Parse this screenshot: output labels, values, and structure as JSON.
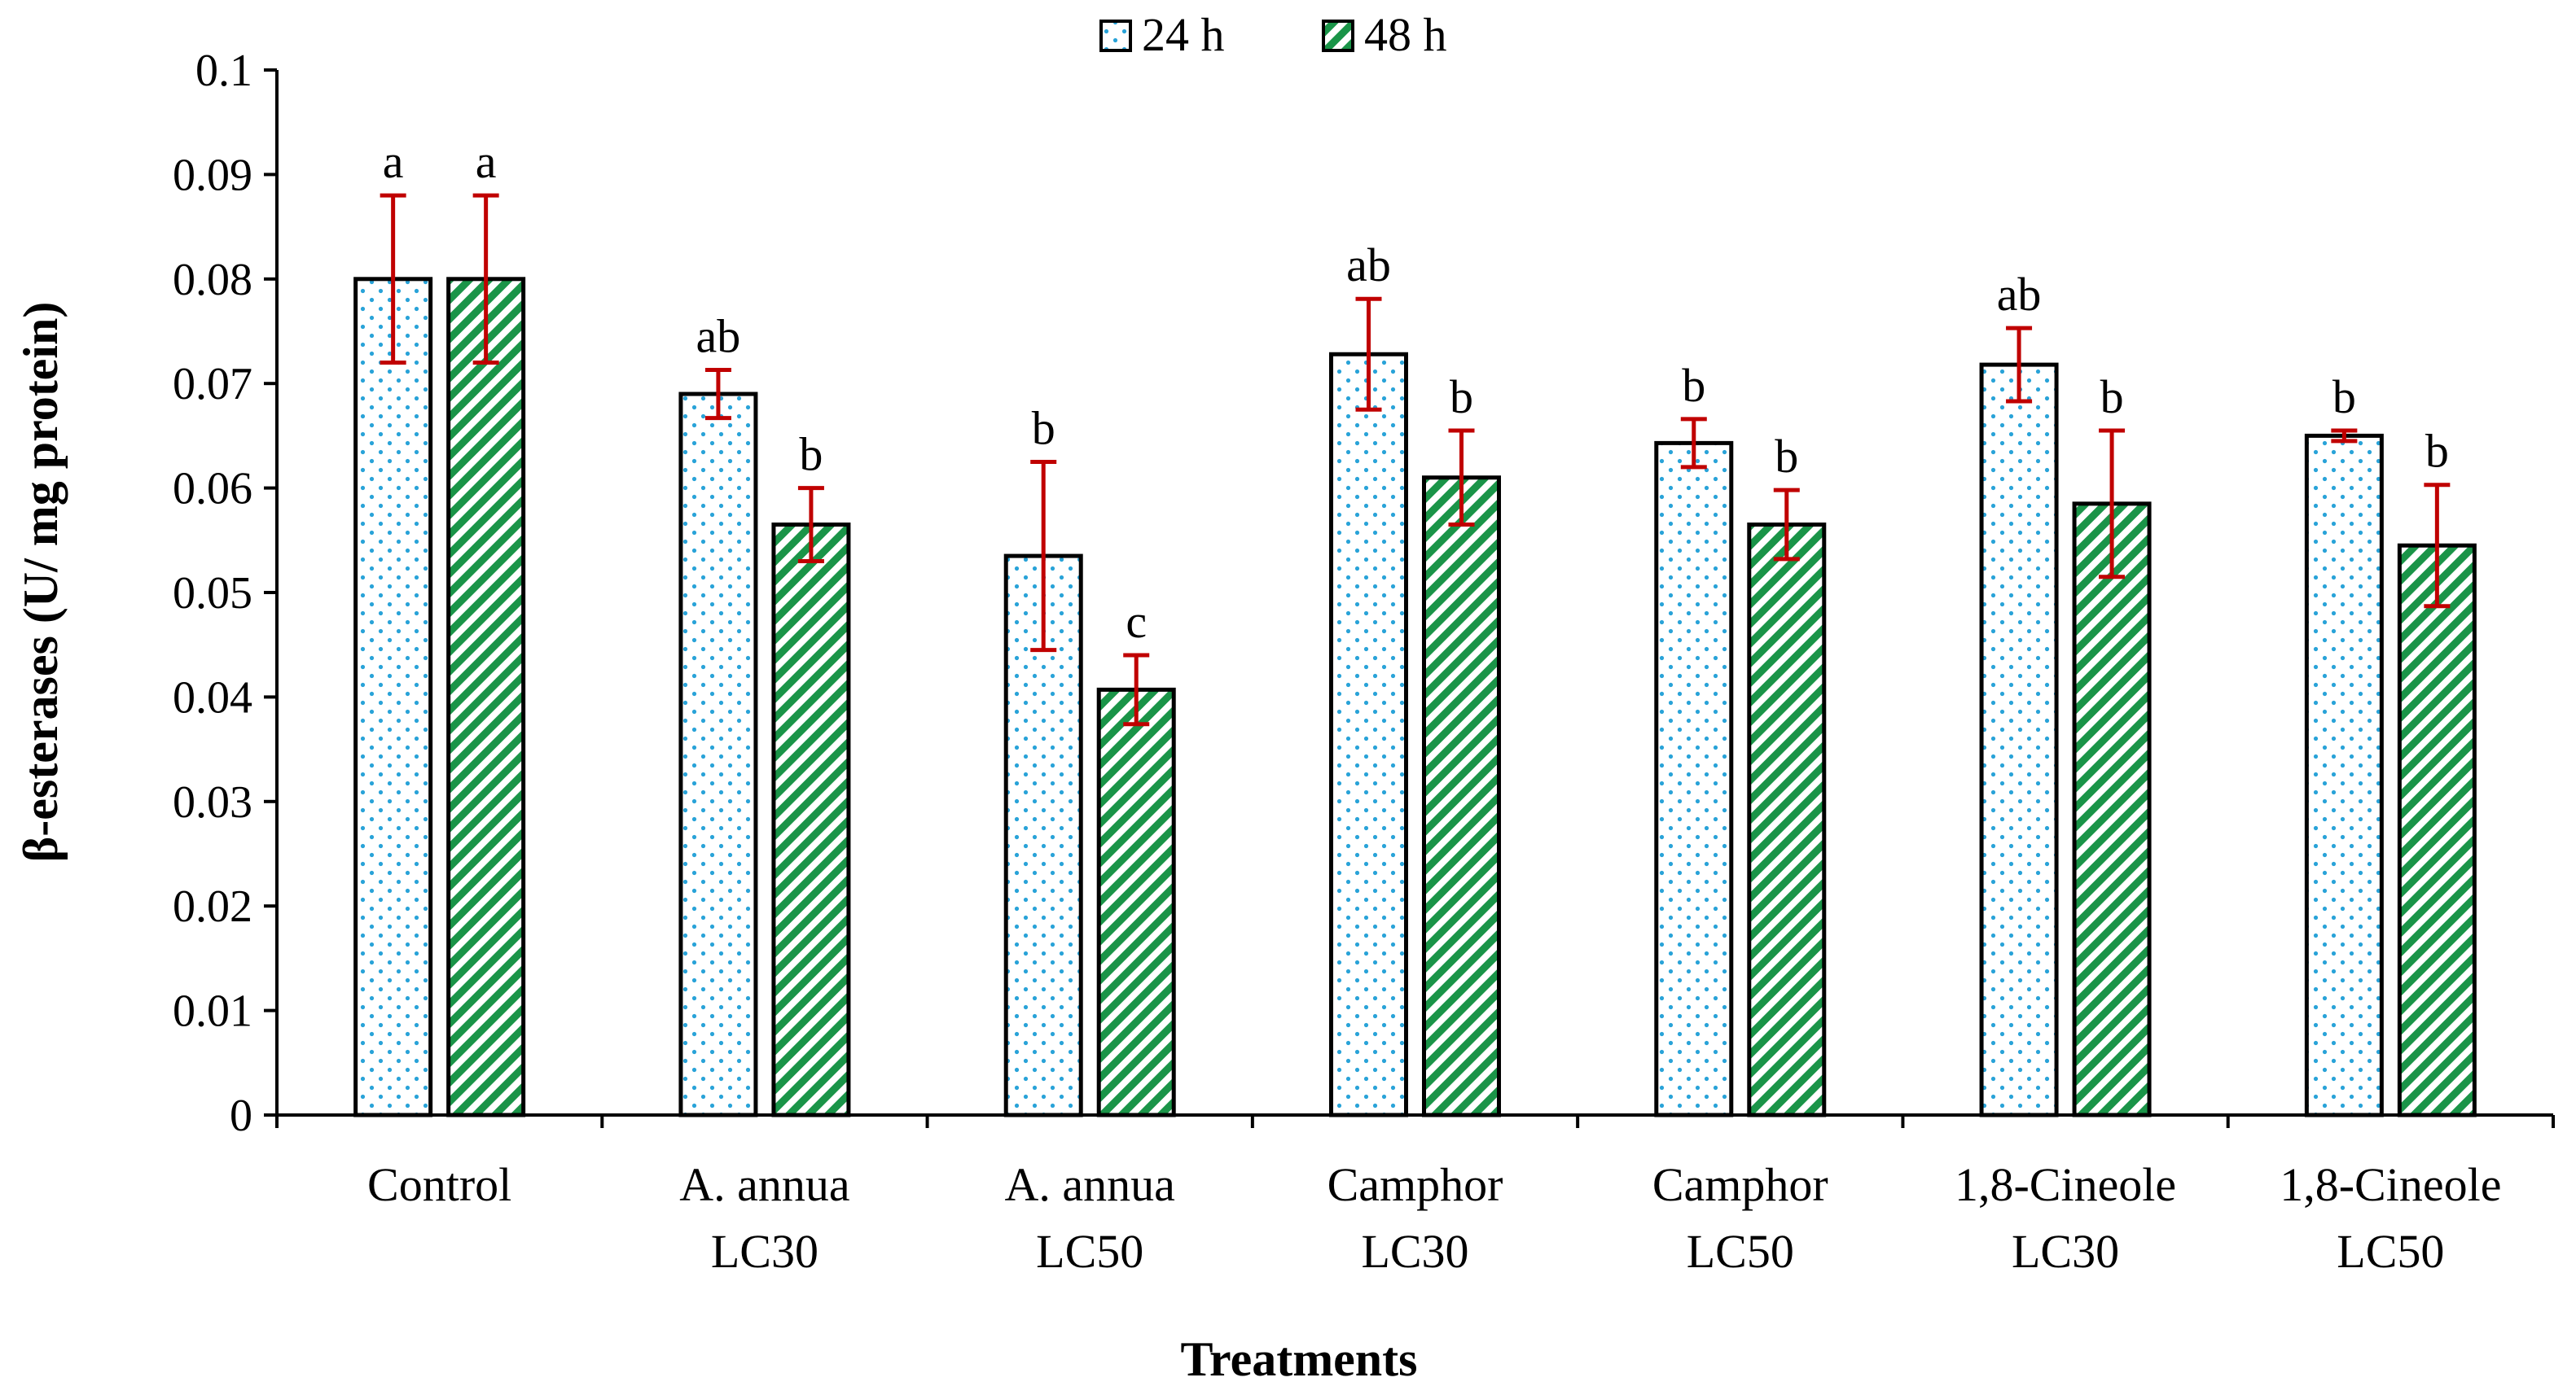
{
  "chart_data": {
    "type": "bar",
    "title": "",
    "xlabel": "Treatments",
    "ylabel": "β-esterases (U/ mg protein)",
    "ylim": [
      0,
      0.1
    ],
    "yticks": [
      "0",
      "0.01",
      "0.02",
      "0.03",
      "0.04",
      "0.05",
      "0.06",
      "0.07",
      "0.08",
      "0.09",
      "0.1"
    ],
    "grid": false,
    "legend_position": "top-center",
    "categories": [
      [
        "Control"
      ],
      [
        "A. annua",
        "LC30"
      ],
      [
        "A. annua",
        "LC50"
      ],
      [
        "Camphor",
        "LC30"
      ],
      [
        "Camphor",
        "LC50"
      ],
      [
        "1,8-Cineole",
        "LC30"
      ],
      [
        "1,8-Cineole",
        "LC50"
      ]
    ],
    "series": [
      {
        "name": "24 h",
        "pattern": "dots",
        "color": "#29a3d8",
        "values": [
          0.08,
          0.069,
          0.0535,
          0.0728,
          0.0643,
          0.0718,
          0.065
        ],
        "error": [
          0.008,
          0.0023,
          0.009,
          0.0053,
          0.0023,
          0.0035,
          0.0005
        ],
        "sig": [
          "a",
          "ab",
          "b",
          "ab",
          "b",
          "ab",
          "b"
        ]
      },
      {
        "name": "48 h",
        "pattern": "diagonal-stripes",
        "color": "#1a9448",
        "values": [
          0.08,
          0.0565,
          0.0407,
          0.061,
          0.0565,
          0.0585,
          0.0545
        ],
        "error": [
          0.008,
          0.0035,
          0.0033,
          0.0045,
          0.0033,
          0.007,
          0.0058
        ],
        "sig": [
          "a",
          "b",
          "c",
          "b",
          "b",
          "b",
          "b"
        ]
      }
    ],
    "error_bar_color": "#c00000"
  }
}
